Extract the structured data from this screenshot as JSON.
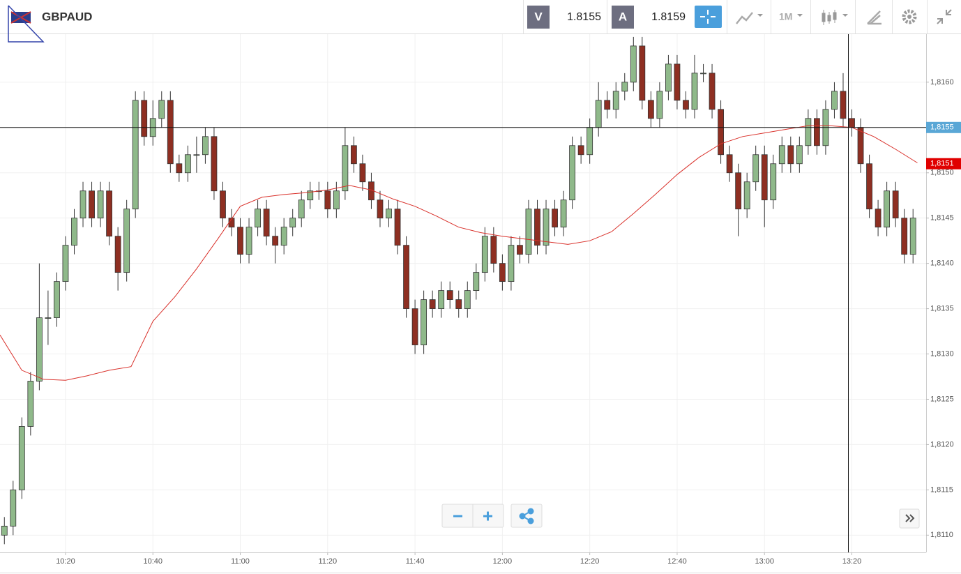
{
  "header": {
    "symbol": "GBPAUD",
    "sell_label": "V",
    "sell_price": "1.8155",
    "buy_label": "A",
    "buy_price": "1.8159",
    "timeframe": "1M"
  },
  "chart_data": {
    "type": "candlestick",
    "x": [
      "10:06",
      "10:08",
      "10:10",
      "10:12",
      "10:14",
      "10:16",
      "10:18",
      "10:20",
      "10:22",
      "10:24",
      "10:26",
      "10:28",
      "10:30",
      "10:32",
      "10:34",
      "10:36",
      "10:38",
      "10:40",
      "10:42",
      "10:44",
      "10:46",
      "10:48",
      "10:50",
      "10:52",
      "10:54",
      "10:56",
      "10:58",
      "11:00",
      "11:02",
      "11:04",
      "11:06",
      "11:08",
      "11:10",
      "11:12",
      "11:14",
      "11:16",
      "11:18",
      "11:20",
      "11:22",
      "11:24",
      "11:26",
      "11:28",
      "11:30",
      "11:32",
      "11:34",
      "11:36",
      "11:38",
      "11:40",
      "11:42",
      "11:44",
      "11:46",
      "11:48",
      "11:50",
      "11:52",
      "11:54",
      "11:56",
      "11:58",
      "12:00",
      "12:02",
      "12:04",
      "12:06",
      "12:08",
      "12:10",
      "12:12",
      "12:14",
      "12:16",
      "12:18",
      "12:20",
      "12:22",
      "12:24",
      "12:26",
      "12:28",
      "12:30",
      "12:32",
      "12:34",
      "12:36",
      "12:38",
      "12:40",
      "12:42",
      "12:44",
      "12:46",
      "12:48",
      "12:50",
      "12:52",
      "12:54",
      "12:56",
      "12:58",
      "13:00",
      "13:02",
      "13:04",
      "13:06",
      "13:08",
      "13:10",
      "13:12",
      "13:14",
      "13:16",
      "13:18",
      "13:20",
      "13:22",
      "13:24",
      "13:26",
      "13:28",
      "13:30",
      "13:32",
      "13:34"
    ],
    "open": [
      1.811,
      1.8111,
      1.8115,
      1.8122,
      1.8127,
      1.8134,
      1.8134,
      1.8138,
      1.8142,
      1.8145,
      1.8148,
      1.8145,
      1.8148,
      1.8143,
      1.8139,
      1.8146,
      1.8158,
      1.8154,
      1.8156,
      1.8158,
      1.8151,
      1.815,
      1.8152,
      1.8152,
      1.8154,
      1.8148,
      1.8145,
      1.8144,
      1.8141,
      1.8144,
      1.8146,
      1.8143,
      1.8142,
      1.8144,
      1.8145,
      1.8147,
      1.8148,
      1.8148,
      1.8146,
      1.8148,
      1.8153,
      1.8151,
      1.8149,
      1.8147,
      1.8145,
      1.8146,
      1.8142,
      1.8135,
      1.8131,
      1.8136,
      1.8135,
      1.8137,
      1.8136,
      1.8135,
      1.8137,
      1.8139,
      1.8143,
      1.814,
      1.8138,
      1.8142,
      1.8141,
      1.8146,
      1.8142,
      1.8146,
      1.8144,
      1.8147,
      1.8153,
      1.8152,
      1.8155,
      1.8158,
      1.8157,
      1.8159,
      1.816,
      1.8164,
      1.8158,
      1.8156,
      1.8159,
      1.8162,
      1.8158,
      1.8157,
      1.8161,
      1.8161,
      1.8157,
      1.8152,
      1.815,
      1.8146,
      1.8149,
      1.8152,
      1.8147,
      1.8151,
      1.8153,
      1.8151,
      1.8153,
      1.8156,
      1.8153,
      1.8157,
      1.8159,
      1.8156,
      1.8155,
      1.8151,
      1.8146,
      1.8144,
      1.8148,
      1.8145,
      1.8141
    ],
    "high": [
      1.8112,
      1.8116,
      1.8123,
      1.8128,
      1.814,
      1.8137,
      1.8139,
      1.8143,
      1.8146,
      1.8149,
      1.8149,
      1.8149,
      1.8149,
      1.8144,
      1.8147,
      1.8159,
      1.8159,
      1.8158,
      1.8159,
      1.8159,
      1.8152,
      1.8153,
      1.8154,
      1.8155,
      1.8155,
      1.8149,
      1.8146,
      1.8145,
      1.8145,
      1.8147,
      1.8147,
      1.8144,
      1.8145,
      1.8146,
      1.8148,
      1.8149,
      1.8149,
      1.8149,
      1.8149,
      1.8155,
      1.8154,
      1.8152,
      1.815,
      1.8148,
      1.8147,
      1.8147,
      1.8143,
      1.8136,
      1.8137,
      1.8137,
      1.8138,
      1.8138,
      1.8137,
      1.8138,
      1.814,
      1.8144,
      1.8144,
      1.8141,
      1.8143,
      1.8143,
      1.8147,
      1.8147,
      1.8147,
      1.8147,
      1.8148,
      1.8154,
      1.8154,
      1.8156,
      1.816,
      1.8159,
      1.816,
      1.8161,
      1.8165,
      1.8165,
      1.8159,
      1.816,
      1.8163,
      1.8163,
      1.8159,
      1.8163,
      1.8162,
      1.8162,
      1.8158,
      1.8153,
      1.8151,
      1.815,
      1.8153,
      1.8153,
      1.8152,
      1.8154,
      1.8154,
      1.8154,
      1.8157,
      1.8157,
      1.8158,
      1.816,
      1.8161,
      1.8157,
      1.8156,
      1.8152,
      1.8147,
      1.8149,
      1.8149,
      1.8146,
      1.8146
    ],
    "low": [
      1.8109,
      1.811,
      1.8114,
      1.8121,
      1.8126,
      1.8131,
      1.8133,
      1.8137,
      1.8141,
      1.8144,
      1.8144,
      1.8144,
      1.8142,
      1.8137,
      1.8138,
      1.8145,
      1.8153,
      1.8153,
      1.8155,
      1.815,
      1.8149,
      1.8149,
      1.815,
      1.8151,
      1.8147,
      1.8144,
      1.8143,
      1.814,
      1.814,
      1.8143,
      1.8142,
      1.814,
      1.8141,
      1.8143,
      1.8144,
      1.8146,
      1.8147,
      1.8145,
      1.8145,
      1.8147,
      1.815,
      1.8148,
      1.8146,
      1.8144,
      1.8144,
      1.8141,
      1.8134,
      1.813,
      1.813,
      1.8134,
      1.8134,
      1.8135,
      1.8134,
      1.8134,
      1.8136,
      1.8138,
      1.8139,
      1.8137,
      1.8137,
      1.814,
      1.814,
      1.8141,
      1.8141,
      1.8143,
      1.8143,
      1.8146,
      1.8151,
      1.8151,
      1.8154,
      1.8156,
      1.8156,
      1.8158,
      1.8159,
      1.8157,
      1.8155,
      1.8155,
      1.8158,
      1.8157,
      1.8156,
      1.8156,
      1.816,
      1.8156,
      1.8151,
      1.8149,
      1.8143,
      1.8145,
      1.8148,
      1.8144,
      1.8146,
      1.815,
      1.815,
      1.815,
      1.8152,
      1.8152,
      1.8152,
      1.8156,
      1.8155,
      1.8154,
      1.815,
      1.8145,
      1.8143,
      1.8143,
      1.8144,
      1.814,
      1.814
    ],
    "close": [
      1.8111,
      1.8115,
      1.8122,
      1.8127,
      1.8134,
      1.8134,
      1.8138,
      1.8142,
      1.8145,
      1.8148,
      1.8145,
      1.8148,
      1.8143,
      1.8139,
      1.8146,
      1.8158,
      1.8154,
      1.8156,
      1.8158,
      1.8151,
      1.815,
      1.8152,
      1.8152,
      1.8154,
      1.8148,
      1.8145,
      1.8144,
      1.8141,
      1.8144,
      1.8146,
      1.8143,
      1.8142,
      1.8144,
      1.8145,
      1.8147,
      1.8148,
      1.8148,
      1.8146,
      1.8148,
      1.8153,
      1.8151,
      1.8149,
      1.8147,
      1.8145,
      1.8146,
      1.8142,
      1.8135,
      1.8131,
      1.8136,
      1.8135,
      1.8137,
      1.8136,
      1.8135,
      1.8137,
      1.8139,
      1.8143,
      1.814,
      1.8138,
      1.8142,
      1.8141,
      1.8146,
      1.8142,
      1.8146,
      1.8144,
      1.8147,
      1.8153,
      1.8152,
      1.8155,
      1.8158,
      1.8157,
      1.8159,
      1.816,
      1.8164,
      1.8158,
      1.8156,
      1.8159,
      1.8162,
      1.8158,
      1.8157,
      1.8161,
      1.8161,
      1.8157,
      1.8152,
      1.815,
      1.8146,
      1.8149,
      1.8152,
      1.8147,
      1.8151,
      1.8153,
      1.8151,
      1.8153,
      1.8156,
      1.8153,
      1.8157,
      1.8159,
      1.8156,
      1.8155,
      1.8151,
      1.8146,
      1.8144,
      1.8148,
      1.8145,
      1.8141,
      1.8145
    ],
    "up_color": "#8fb98a",
    "down_color": "#8e2f22",
    "ma": {
      "color": "#d9302a",
      "x": [
        "10:05",
        "10:10",
        "10:15",
        "10:20",
        "10:25",
        "10:30",
        "10:35",
        "10:40",
        "10:45",
        "10:50",
        "10:55",
        "11:00",
        "11:05",
        "11:10",
        "11:15",
        "11:20",
        "11:25",
        "11:30",
        "11:35",
        "11:40",
        "11:45",
        "11:50",
        "11:55",
        "12:00",
        "12:05",
        "12:10",
        "12:15",
        "12:20",
        "12:25",
        "12:30",
        "12:35",
        "12:40",
        "12:45",
        "12:50",
        "12:55",
        "13:00",
        "13:05",
        "13:10",
        "13:15",
        "13:20",
        "13:25",
        "13:30",
        "13:35"
      ],
      "values": [
        1.81321,
        1.81282,
        1.81272,
        1.81271,
        1.81276,
        1.81282,
        1.81286,
        1.81336,
        1.81363,
        1.81394,
        1.81428,
        1.81463,
        1.81473,
        1.81476,
        1.81478,
        1.81481,
        1.81486,
        1.81481,
        1.81471,
        1.81463,
        1.81452,
        1.8144,
        1.81434,
        1.8143,
        1.81427,
        1.81424,
        1.81421,
        1.81425,
        1.81435,
        1.81455,
        1.81476,
        1.81498,
        1.81517,
        1.81532,
        1.8154,
        1.81544,
        1.81548,
        1.81552,
        1.81552,
        1.8155,
        1.8154,
        1.81526,
        1.81511
      ]
    },
    "xlim": [
      "10:05",
      "13:37"
    ],
    "xticks": [
      "10:20",
      "10:40",
      "11:00",
      "11:20",
      "11:40",
      "12:00",
      "12:20",
      "12:40",
      "13:00",
      "13:20"
    ],
    "ylim": [
      1.81081,
      1.81653
    ],
    "yticks": [
      {
        "value": 1.811,
        "label": "1,8110"
      },
      {
        "value": 1.8115,
        "label": "1,8115"
      },
      {
        "value": 1.812,
        "label": "1,8120"
      },
      {
        "value": 1.8125,
        "label": "1,8125"
      },
      {
        "value": 1.813,
        "label": "1,8130"
      },
      {
        "value": 1.8135,
        "label": "1,8135"
      },
      {
        "value": 1.814,
        "label": "1,8140"
      },
      {
        "value": 1.8145,
        "label": "1,8145"
      },
      {
        "value": 1.815,
        "label": "1,8150"
      },
      {
        "value": 1.8155,
        "label": "1,8155"
      },
      {
        "value": 1.816,
        "label": "1,8160"
      }
    ],
    "price_labels": [
      {
        "value": 1.8155,
        "label": "1,8155",
        "color": "#5aa7d6"
      },
      {
        "value": 1.8151,
        "label": "1,8151",
        "color": "#e00000"
      }
    ],
    "grid": true
  }
}
